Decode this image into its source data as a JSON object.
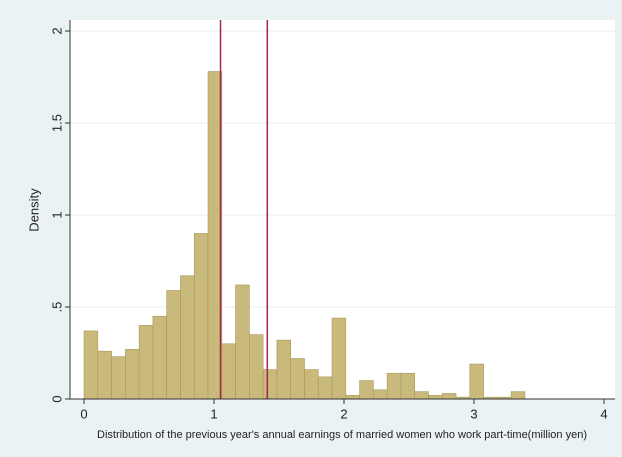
{
  "chart_data": {
    "type": "histogram",
    "x_label": "Distribution of  the previous year's annual earnings of married women who work part-time(million yen)",
    "y_label": "Density",
    "bins": [
      0,
      0.106,
      0.212,
      0.318,
      0.424,
      0.53,
      0.636,
      0.742,
      0.848,
      0.954,
      1.06,
      1.166,
      1.272,
      1.378,
      1.484,
      1.59,
      1.696,
      1.802,
      1.908,
      2.014,
      2.12,
      2.226,
      2.332,
      2.438,
      2.544,
      2.65,
      2.756,
      2.862,
      2.968,
      3.074,
      3.18,
      3.286,
      3.392
    ],
    "values": [
      0.37,
      0.26,
      0.23,
      0.27,
      0.4,
      0.45,
      0.59,
      0.67,
      0.9,
      1.78,
      0.3,
      0.62,
      0.35,
      0.16,
      0.32,
      0.22,
      0.16,
      0.12,
      0.44,
      0.02,
      0.1,
      0.05,
      0.14,
      0.14,
      0.04,
      0.02,
      0.03,
      0.01,
      0.19,
      0.01,
      0.01,
      0.04
    ],
    "color": "#c9b97a",
    "vlines": [
      1.05,
      1.41
    ],
    "vline_color": "#a8234f",
    "xlim": [
      -0.108,
      4.085
    ],
    "ylim": [
      0,
      2.06
    ],
    "xticks": [
      0,
      1,
      2,
      3,
      4
    ],
    "yticks": [
      0,
      {
        "value": 0.5,
        "label": ".5"
      },
      1,
      1.5,
      2
    ],
    "grid": true
  }
}
